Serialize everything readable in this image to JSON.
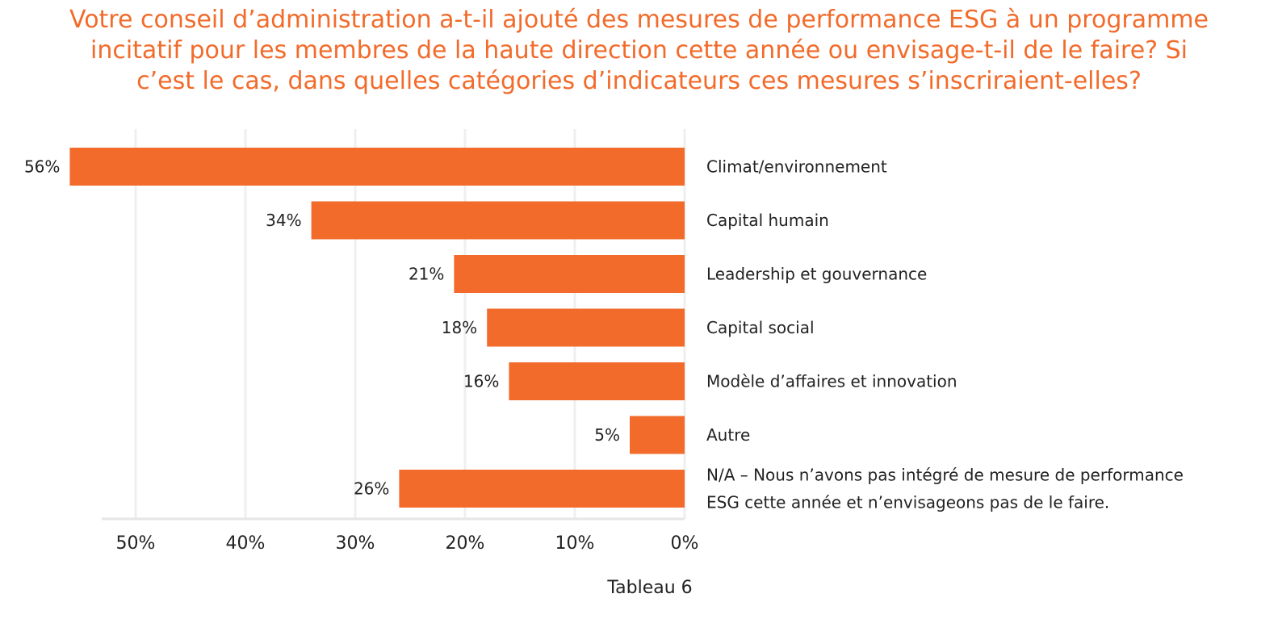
{
  "chart_data": {
    "type": "bar",
    "orientation": "horizontal",
    "title_lines": [
      "Votre conseil d’administration a-t-il ajouté des mesures de performance ESG à un programme",
      "incitatif pour les membres de la haute direction cette année ou envisage-t-il de le faire? Si",
      "c’est le cas, dans quelles catégories d’indicateurs ces mesures s’inscriraient-elles?"
    ],
    "categories": [
      [
        "Climat/environnement"
      ],
      [
        "Capital humain"
      ],
      [
        "Leadership et gouvernance"
      ],
      [
        "Capital social"
      ],
      [
        "Modèle d’affaires et innovation"
      ],
      [
        "Autre"
      ],
      [
        "N/A  – Nous n’avons pas intégré de mesure de performance",
        "ESG cette année et n’envisageons pas de le faire."
      ]
    ],
    "values": [
      56,
      34,
      21,
      18,
      16,
      5,
      26
    ],
    "value_labels": [
      "56%",
      "34%",
      "21%",
      "18%",
      "16%",
      "5%",
      "26%"
    ],
    "xlim": [
      0,
      55
    ],
    "x_reversed": true,
    "ticks": [
      50,
      40,
      30,
      20,
      10,
      0
    ],
    "tick_labels": [
      "50%",
      "40%",
      "30%",
      "20%",
      "10%",
      "0%"
    ],
    "grid": true,
    "bar_color": "#f26b2b",
    "caption": "Tableau 6"
  }
}
